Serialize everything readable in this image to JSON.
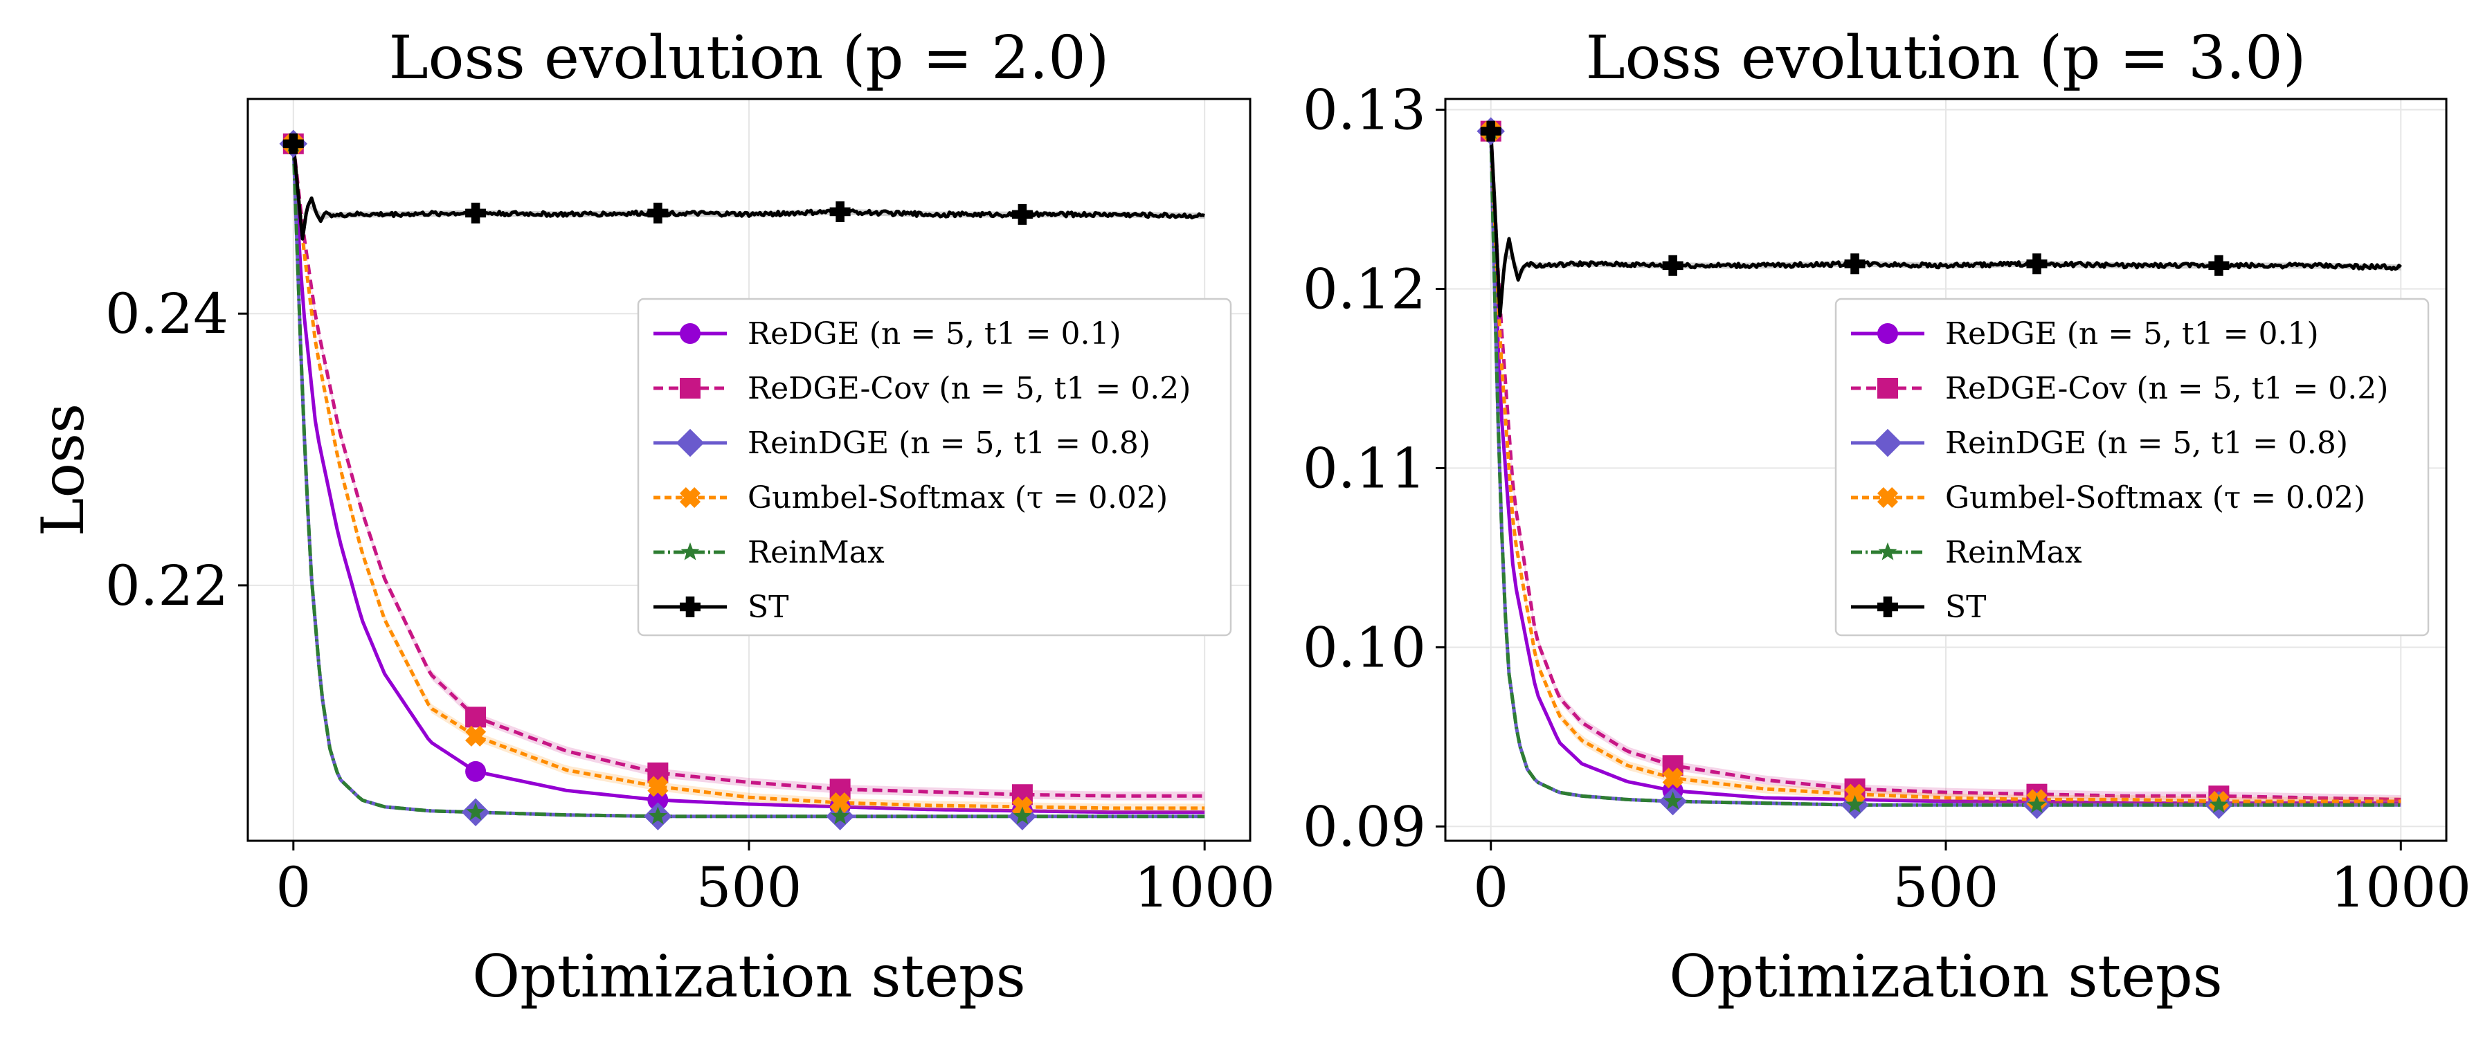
{
  "colors": {
    "redge": "#9400D3",
    "redge_cov": "#C71585",
    "reindge": "#6A5ACD",
    "gumbel": "#FF8C00",
    "reinmax": "#2E7D32",
    "st": "#000000"
  },
  "chart_data": [
    {
      "type": "line",
      "title": "Loss evolution (p = 2.0)",
      "xlabel": "Optimization steps",
      "ylabel": "Loss",
      "xlim": [
        -50,
        1050
      ],
      "ylim": [
        0.2012,
        0.2558
      ],
      "xticks": [
        0,
        500,
        1000
      ],
      "xtick_labels": [
        "0",
        "500",
        "1000"
      ],
      "yticks": [
        0.22,
        0.24
      ],
      "ytick_labels": [
        "0.22",
        "0.24"
      ],
      "grid": true,
      "legend_position": "center-right",
      "series": [
        {
          "name": "ReDGE (n = 5, t1 = 0.1)",
          "color_key": "redge",
          "marker": "circle",
          "dash": "",
          "x": [
            0,
            10,
            25,
            50,
            75,
            100,
            150,
            200,
            300,
            400,
            500,
            600,
            700,
            800,
            900,
            1000
          ],
          "y": [
            0.2525,
            0.241,
            0.2315,
            0.2235,
            0.2175,
            0.2135,
            0.2085,
            0.2063,
            0.2049,
            0.2042,
            0.2039,
            0.2037,
            0.2035,
            0.2034,
            0.2033,
            0.2033
          ]
        },
        {
          "name": "ReDGE-Cov (n = 5, t1 = 0.2)",
          "color_key": "redge_cov",
          "marker": "square",
          "dash": "14,8",
          "x": [
            0,
            10,
            25,
            50,
            75,
            100,
            150,
            200,
            300,
            400,
            500,
            600,
            700,
            800,
            900,
            1000
          ],
          "y": [
            0.2525,
            0.2465,
            0.2395,
            0.2315,
            0.2255,
            0.2205,
            0.2135,
            0.2103,
            0.2078,
            0.2062,
            0.2055,
            0.205,
            0.2048,
            0.2046,
            0.2045,
            0.2045
          ]
        },
        {
          "name": "ReinDGE (n = 5, t1 = 0.8)",
          "color_key": "reindge",
          "marker": "diamond",
          "dash": "",
          "x": [
            0,
            5,
            10,
            15,
            20,
            30,
            40,
            50,
            75,
            100,
            150,
            200,
            300,
            400,
            500,
            600,
            700,
            800,
            900,
            1000
          ],
          "y": [
            0.2525,
            0.243,
            0.234,
            0.2265,
            0.2205,
            0.2125,
            0.208,
            0.2058,
            0.2042,
            0.2037,
            0.2034,
            0.2033,
            0.2031,
            0.203,
            0.203,
            0.203,
            0.203,
            0.203,
            0.203,
            0.203
          ]
        },
        {
          "name": "Gumbel-Softmax (τ = 0.02)",
          "color_key": "gumbel",
          "marker": "cross",
          "dash": "10,6",
          "x": [
            0,
            10,
            25,
            50,
            75,
            100,
            150,
            200,
            300,
            400,
            500,
            600,
            700,
            800,
            900,
            1000
          ],
          "y": [
            0.2525,
            0.2455,
            0.2375,
            0.229,
            0.2225,
            0.2175,
            0.211,
            0.2089,
            0.2064,
            0.2052,
            0.2044,
            0.204,
            0.2038,
            0.2037,
            0.2036,
            0.2036
          ]
        },
        {
          "name": "ReinMax",
          "color_key": "reinmax",
          "marker": "star",
          "dash": "16,5,3,5",
          "x": [
            0,
            5,
            10,
            15,
            20,
            30,
            40,
            50,
            75,
            100,
            150,
            200,
            300,
            400,
            500,
            600,
            700,
            800,
            900,
            1000
          ],
          "y": [
            0.2525,
            0.243,
            0.234,
            0.2265,
            0.2205,
            0.2125,
            0.208,
            0.2058,
            0.2042,
            0.2037,
            0.2034,
            0.2033,
            0.2031,
            0.203,
            0.203,
            0.203,
            0.203,
            0.203,
            0.203,
            0.203
          ]
        },
        {
          "name": "ST",
          "color_key": "st",
          "marker": "plus",
          "dash": "",
          "x": [
            0,
            5,
            10,
            15,
            20,
            25,
            30,
            35,
            40,
            50,
            60,
            100,
            200,
            300,
            400,
            500,
            600,
            700,
            800,
            900,
            1000
          ],
          "y": [
            0.2525,
            0.249,
            0.2455,
            0.2478,
            0.2485,
            0.2474,
            0.2468,
            0.2475,
            0.2473,
            0.2472,
            0.2473,
            0.2473,
            0.2474,
            0.2473,
            0.2474,
            0.2473,
            0.2475,
            0.2473,
            0.2473,
            0.2473,
            0.2472
          ]
        }
      ],
      "marker_x": [
        0,
        200,
        400,
        600,
        800
      ]
    },
    {
      "type": "line",
      "title": "Loss evolution (p = 3.0)",
      "xlabel": "Optimization steps",
      "ylabel": "",
      "xlim": [
        -50,
        1050
      ],
      "ylim": [
        0.0892,
        0.1306
      ],
      "xticks": [
        0,
        500,
        1000
      ],
      "xtick_labels": [
        "0",
        "500",
        "1000"
      ],
      "yticks": [
        0.09,
        0.1,
        0.11,
        0.12,
        0.13
      ],
      "ytick_labels": [
        "0.09",
        "0.10",
        "0.11",
        "0.12",
        "0.13"
      ],
      "grid": true,
      "legend_position": "center-right",
      "series": [
        {
          "name": "ReDGE (n = 5, t1 = 0.1)",
          "color_key": "redge",
          "marker": "circle",
          "dash": "",
          "x": [
            0,
            10,
            25,
            50,
            75,
            100,
            150,
            200,
            300,
            400,
            500,
            600,
            700,
            800,
            900,
            1000
          ],
          "y": [
            0.1288,
            0.114,
            0.104,
            0.0975,
            0.0947,
            0.0935,
            0.0925,
            0.092,
            0.0916,
            0.0915,
            0.0914,
            0.0914,
            0.0913,
            0.0913,
            0.0913,
            0.0913
          ]
        },
        {
          "name": "ReDGE-Cov (n = 5, t1 = 0.2)",
          "color_key": "redge_cov",
          "marker": "square",
          "dash": "14,8",
          "x": [
            0,
            10,
            25,
            50,
            75,
            100,
            150,
            200,
            300,
            400,
            500,
            600,
            700,
            800,
            900,
            1000
          ],
          "y": [
            0.1288,
            0.119,
            0.1085,
            0.1005,
            0.0972,
            0.0958,
            0.0942,
            0.0934,
            0.0926,
            0.0921,
            0.0919,
            0.0918,
            0.0917,
            0.0917,
            0.0916,
            0.0915
          ]
        },
        {
          "name": "ReinDGE (n = 5, t1 = 0.8)",
          "color_key": "reindge",
          "marker": "diamond",
          "dash": "",
          "x": [
            0,
            5,
            10,
            15,
            20,
            30,
            40,
            50,
            75,
            100,
            150,
            200,
            300,
            400,
            500,
            600,
            700,
            800,
            900,
            1000
          ],
          "y": [
            0.1288,
            0.118,
            0.109,
            0.1025,
            0.0985,
            0.0948,
            0.0932,
            0.0925,
            0.0919,
            0.0917,
            0.0915,
            0.0914,
            0.0913,
            0.0912,
            0.0912,
            0.0912,
            0.0912,
            0.0912,
            0.0912,
            0.0912
          ]
        },
        {
          "name": "Gumbel-Softmax (τ = 0.02)",
          "color_key": "gumbel",
          "marker": "cross",
          "dash": "10,6",
          "x": [
            0,
            10,
            25,
            50,
            75,
            100,
            150,
            200,
            300,
            400,
            500,
            600,
            700,
            800,
            900,
            1000
          ],
          "y": [
            0.1288,
            0.117,
            0.1065,
            0.0992,
            0.0962,
            0.0948,
            0.0934,
            0.0927,
            0.0921,
            0.0918,
            0.0916,
            0.0915,
            0.0915,
            0.0914,
            0.0914,
            0.0914
          ]
        },
        {
          "name": "ReinMax",
          "color_key": "reinmax",
          "marker": "star",
          "dash": "16,5,3,5",
          "x": [
            0,
            5,
            10,
            15,
            20,
            30,
            40,
            50,
            75,
            100,
            150,
            200,
            300,
            400,
            500,
            600,
            700,
            800,
            900,
            1000
          ],
          "y": [
            0.1288,
            0.118,
            0.109,
            0.1025,
            0.0985,
            0.0948,
            0.0932,
            0.0925,
            0.0919,
            0.0917,
            0.0915,
            0.0914,
            0.0913,
            0.0912,
            0.0912,
            0.0912,
            0.0912,
            0.0912,
            0.0912,
            0.0912
          ]
        },
        {
          "name": "ST",
          "color_key": "st",
          "marker": "plus",
          "dash": "",
          "x": [
            0,
            5,
            10,
            15,
            20,
            25,
            30,
            35,
            40,
            50,
            60,
            100,
            200,
            300,
            400,
            500,
            600,
            700,
            800,
            900,
            1000
          ],
          "y": [
            0.1288,
            0.124,
            0.1185,
            0.1215,
            0.1228,
            0.1215,
            0.1205,
            0.1212,
            0.1214,
            0.1213,
            0.1213,
            0.1214,
            0.1213,
            0.1213,
            0.1214,
            0.1213,
            0.1214,
            0.1213,
            0.1213,
            0.1213,
            0.1212
          ]
        }
      ],
      "marker_x": [
        0,
        200,
        400,
        600,
        800
      ]
    }
  ]
}
